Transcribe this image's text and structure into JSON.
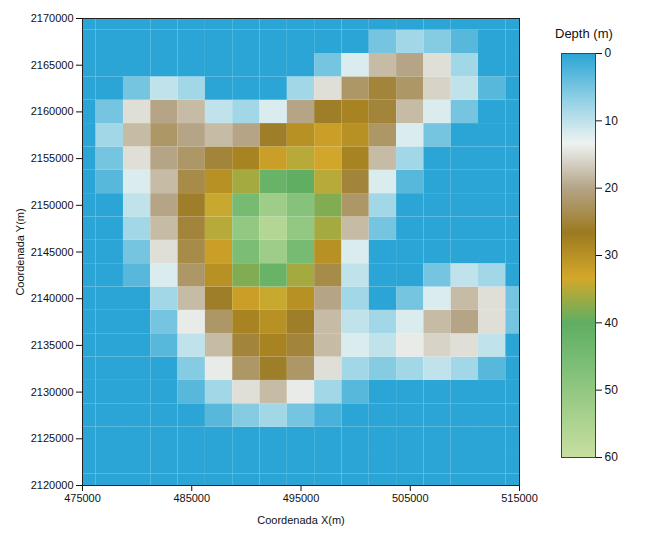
{
  "chart_data": {
    "type": "heatmap",
    "xlabel": "Coordenada X(m)",
    "ylabel": "Coordenada Y(m)",
    "x": [
      475000,
      477500,
      480000,
      482500,
      485000,
      487500,
      490000,
      492500,
      495000,
      497500,
      500000,
      502500,
      505000,
      507500,
      510000,
      512500,
      515000
    ],
    "y": [
      2120000,
      2122500,
      2125000,
      2127500,
      2130000,
      2132500,
      2135000,
      2137500,
      2140000,
      2142500,
      2145000,
      2147500,
      2150000,
      2152500,
      2155000,
      2157500,
      2160000,
      2162500,
      2165000,
      2167500,
      2170000
    ],
    "z": [
      [
        0,
        0,
        0,
        0,
        0,
        0,
        0,
        0,
        0,
        0,
        0,
        0,
        0,
        0,
        0,
        0,
        0
      ],
      [
        0,
        0,
        0,
        0,
        0,
        0,
        0,
        0,
        0,
        0,
        0,
        0,
        0,
        0,
        0,
        0,
        0
      ],
      [
        0,
        0,
        0,
        0,
        0,
        0,
        0,
        0,
        0,
        0,
        0,
        0,
        0,
        0,
        0,
        0,
        0
      ],
      [
        0,
        0,
        0,
        0,
        0,
        3,
        6,
        8,
        5,
        2,
        0,
        0,
        0,
        0,
        0,
        0,
        0
      ],
      [
        0,
        0,
        0,
        0,
        3,
        8,
        15,
        18,
        14,
        8,
        3,
        0,
        0,
        0,
        0,
        0,
        0
      ],
      [
        0,
        0,
        0,
        0,
        6,
        14,
        22,
        26,
        22,
        15,
        8,
        6,
        8,
        10,
        8,
        3,
        0
      ],
      [
        0,
        0,
        0,
        3,
        10,
        18,
        25,
        28,
        25,
        18,
        12,
        10,
        14,
        16,
        15,
        10,
        0
      ],
      [
        0,
        0,
        0,
        5,
        14,
        22,
        28,
        30,
        26,
        18,
        10,
        8,
        12,
        18,
        20,
        15,
        5
      ],
      [
        0,
        0,
        0,
        8,
        18,
        26,
        32,
        34,
        30,
        20,
        8,
        0,
        5,
        12,
        18,
        15,
        5
      ],
      [
        0,
        0,
        3,
        12,
        22,
        30,
        38,
        42,
        36,
        24,
        10,
        0,
        0,
        5,
        10,
        8,
        0
      ],
      [
        0,
        0,
        5,
        15,
        24,
        32,
        46,
        52,
        45,
        30,
        12,
        0,
        0,
        0,
        0,
        0,
        0
      ],
      [
        0,
        0,
        8,
        18,
        25,
        35,
        50,
        56,
        50,
        36,
        18,
        5,
        0,
        0,
        0,
        0,
        0
      ],
      [
        0,
        0,
        10,
        20,
        26,
        34,
        45,
        52,
        48,
        38,
        22,
        8,
        0,
        0,
        0,
        0,
        0
      ],
      [
        0,
        3,
        12,
        18,
        24,
        30,
        36,
        42,
        40,
        35,
        25,
        12,
        3,
        0,
        0,
        0,
        0
      ],
      [
        0,
        5,
        15,
        20,
        22,
        25,
        28,
        32,
        35,
        33,
        28,
        18,
        8,
        0,
        0,
        0,
        0
      ],
      [
        0,
        8,
        18,
        22,
        20,
        18,
        20,
        26,
        30,
        32,
        30,
        22,
        12,
        5,
        0,
        0,
        0
      ],
      [
        0,
        5,
        15,
        20,
        18,
        10,
        8,
        12,
        20,
        26,
        28,
        25,
        18,
        12,
        5,
        0,
        0
      ],
      [
        0,
        0,
        5,
        10,
        8,
        0,
        0,
        0,
        8,
        15,
        22,
        25,
        22,
        16,
        10,
        3,
        0
      ],
      [
        0,
        0,
        0,
        0,
        0,
        0,
        0,
        0,
        0,
        5,
        12,
        18,
        20,
        15,
        8,
        0,
        0
      ],
      [
        0,
        0,
        0,
        0,
        0,
        0,
        0,
        0,
        0,
        0,
        0,
        5,
        8,
        6,
        3,
        0,
        0
      ],
      [
        0,
        0,
        0,
        0,
        0,
        0,
        0,
        0,
        0,
        0,
        0,
        0,
        0,
        0,
        0,
        0,
        0
      ]
    ],
    "xlim": [
      475000,
      515000
    ],
    "ylim": [
      2120000,
      2170000
    ],
    "xticks": [
      475000,
      485000,
      495000,
      505000,
      515000
    ],
    "yticks": [
      2120000,
      2125000,
      2130000,
      2135000,
      2140000,
      2145000,
      2150000,
      2155000,
      2160000,
      2165000,
      2170000
    ],
    "colorbar": {
      "label": "Depth (m)",
      "range": [
        0,
        60
      ],
      "ticks": [
        0,
        10,
        20,
        30,
        40,
        50,
        60
      ]
    }
  }
}
